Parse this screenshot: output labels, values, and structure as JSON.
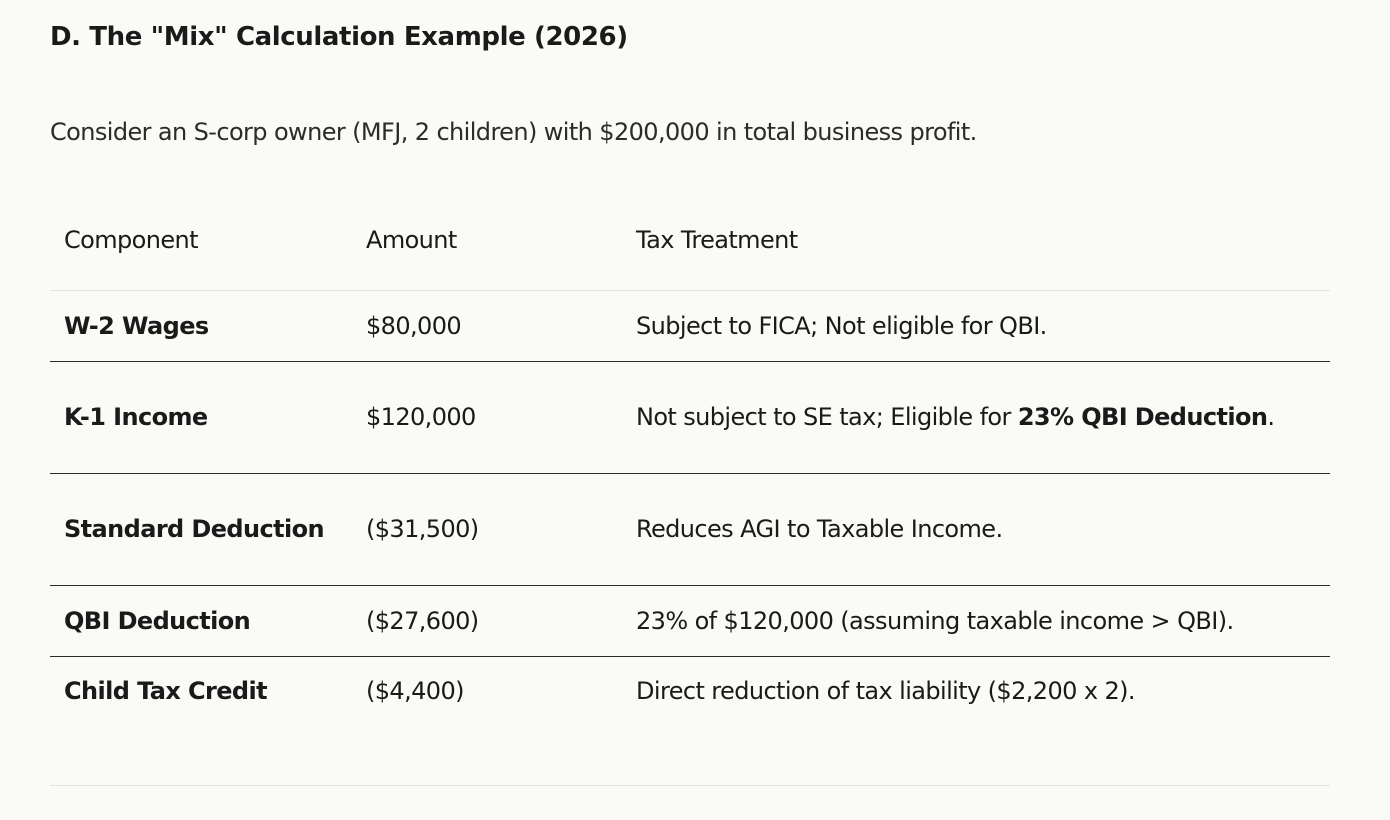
{
  "section": {
    "title": "D. The \"Mix\" Calculation Example (2026)",
    "intro": "Consider an S-corp owner (MFJ, 2 children) with $200,000 in total business profit."
  },
  "table": {
    "headers": [
      "Component",
      "Amount",
      "Tax Treatment"
    ],
    "rows": [
      {
        "component": "W-2 Wages",
        "amount": "$80,000",
        "treatment": "Subject to FICA; Not eligible for QBI."
      },
      {
        "component": "K-1 Income",
        "amount": "$120,000",
        "treatment_prefix": "Not subject to SE tax; Eligible for ",
        "treatment_bold": "23% QBI Deduction",
        "treatment_suffix": "."
      },
      {
        "component": "Standard Deduction",
        "amount": "($31,500)",
        "treatment": "Reduces AGI to Taxable Income."
      },
      {
        "component": "QBI Deduction",
        "amount": "($27,600)",
        "treatment": "23% of $120,000 (assuming taxable income > QBI)."
      },
      {
        "component": "Child Tax Credit",
        "amount": "($4,400)",
        "treatment": "Direct reduction of tax liability ($2,200 x 2)."
      }
    ]
  }
}
